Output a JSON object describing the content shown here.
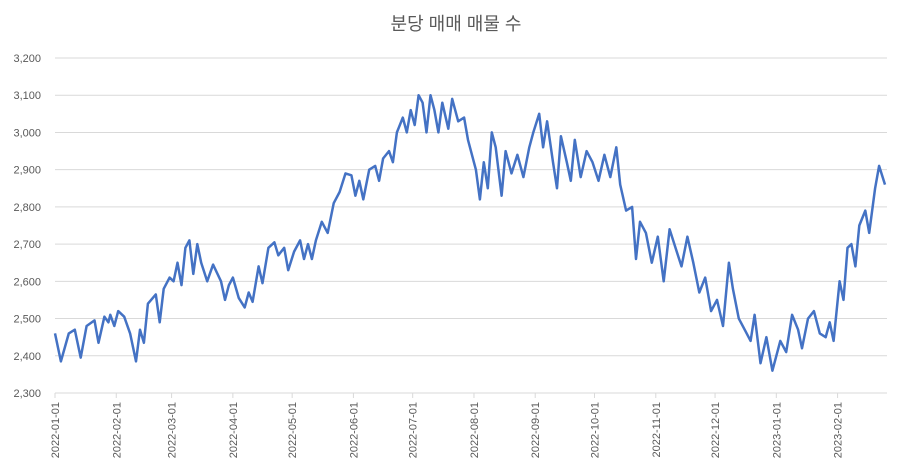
{
  "chart_data": {
    "type": "line",
    "title": "분당 매매 매물 수",
    "x": [
      "2022-01-01",
      "2022-01-04",
      "2022-01-08",
      "2022-01-11",
      "2022-01-14",
      "2022-01-17",
      "2022-01-21",
      "2022-01-23",
      "2022-01-26",
      "2022-01-28",
      "2022-01-29",
      "2022-01-31",
      "2022-02-02",
      "2022-02-05",
      "2022-02-08",
      "2022-02-11",
      "2022-02-13",
      "2022-02-15",
      "2022-02-17",
      "2022-02-21",
      "2022-02-23",
      "2022-02-25",
      "2022-02-28",
      "2022-03-02",
      "2022-03-04",
      "2022-03-06",
      "2022-03-08",
      "2022-03-10",
      "2022-03-12",
      "2022-03-14",
      "2022-03-16",
      "2022-03-19",
      "2022-03-22",
      "2022-03-26",
      "2022-03-28",
      "2022-03-30",
      "2022-04-01",
      "2022-04-04",
      "2022-04-07",
      "2022-04-09",
      "2022-04-11",
      "2022-04-14",
      "2022-04-16",
      "2022-04-19",
      "2022-04-22",
      "2022-04-24",
      "2022-04-27",
      "2022-04-29",
      "2022-05-02",
      "2022-05-05",
      "2022-05-07",
      "2022-05-09",
      "2022-05-11",
      "2022-05-13",
      "2022-05-16",
      "2022-05-19",
      "2022-05-22",
      "2022-05-25",
      "2022-05-28",
      "2022-05-31",
      "2022-06-02",
      "2022-06-04",
      "2022-06-06",
      "2022-06-09",
      "2022-06-12",
      "2022-06-14",
      "2022-06-16",
      "2022-06-19",
      "2022-06-21",
      "2022-06-23",
      "2022-06-26",
      "2022-06-28",
      "2022-06-30",
      "2022-07-02",
      "2022-07-04",
      "2022-07-06",
      "2022-07-08",
      "2022-07-10",
      "2022-07-12",
      "2022-07-14",
      "2022-07-16",
      "2022-07-19",
      "2022-07-21",
      "2022-07-24",
      "2022-07-27",
      "2022-07-29",
      "2022-08-02",
      "2022-08-04",
      "2022-08-06",
      "2022-08-08",
      "2022-08-10",
      "2022-08-12",
      "2022-08-15",
      "2022-08-17",
      "2022-08-20",
      "2022-08-23",
      "2022-08-26",
      "2022-08-29",
      "2022-08-31",
      "2022-09-03",
      "2022-09-05",
      "2022-09-07",
      "2022-09-10",
      "2022-09-12",
      "2022-09-14",
      "2022-09-17",
      "2022-09-19",
      "2022-09-21",
      "2022-09-24",
      "2022-09-27",
      "2022-09-30",
      "2022-10-03",
      "2022-10-06",
      "2022-10-09",
      "2022-10-12",
      "2022-10-14",
      "2022-10-17",
      "2022-10-20",
      "2022-10-22",
      "2022-10-24",
      "2022-10-27",
      "2022-10-30",
      "2022-11-02",
      "2022-11-05",
      "2022-11-08",
      "2022-11-11",
      "2022-11-14",
      "2022-11-17",
      "2022-11-20",
      "2022-11-23",
      "2022-11-26",
      "2022-11-29",
      "2022-12-02",
      "2022-12-05",
      "2022-12-08",
      "2022-12-10",
      "2022-12-13",
      "2022-12-16",
      "2022-12-19",
      "2022-12-21",
      "2022-12-24",
      "2022-12-27",
      "2022-12-30",
      "2023-01-03",
      "2023-01-06",
      "2023-01-09",
      "2023-01-12",
      "2023-01-14",
      "2023-01-17",
      "2023-01-20",
      "2023-01-23",
      "2023-01-26",
      "2023-01-28",
      "2023-01-30",
      "2023-02-02",
      "2023-02-04",
      "2023-02-06",
      "2023-02-08",
      "2023-02-10",
      "2023-02-12",
      "2023-02-15",
      "2023-02-17",
      "2023-02-20",
      "2023-02-22",
      "2023-02-25"
    ],
    "series": [
      {
        "color": "#4472c4",
        "values": [
          2460,
          2385,
          2460,
          2470,
          2395,
          2480,
          2495,
          2435,
          2505,
          2490,
          2510,
          2480,
          2520,
          2505,
          2460,
          2385,
          2470,
          2435,
          2540,
          2565,
          2490,
          2580,
          2610,
          2600,
          2650,
          2590,
          2690,
          2710,
          2620,
          2700,
          2650,
          2600,
          2645,
          2600,
          2550,
          2590,
          2610,
          2555,
          2530,
          2570,
          2545,
          2640,
          2595,
          2690,
          2705,
          2670,
          2690,
          2630,
          2680,
          2710,
          2660,
          2700,
          2660,
          2710,
          2760,
          2730,
          2810,
          2840,
          2890,
          2885,
          2830,
          2870,
          2820,
          2900,
          2910,
          2870,
          2930,
          2950,
          2920,
          3000,
          3040,
          3000,
          3060,
          3020,
          3100,
          3080,
          3000,
          3100,
          3060,
          3000,
          3080,
          3010,
          3090,
          3030,
          3040,
          2980,
          2900,
          2820,
          2920,
          2850,
          3000,
          2960,
          2830,
          2950,
          2890,
          2940,
          2880,
          2960,
          3000,
          3050,
          2960,
          3030,
          2920,
          2850,
          2990,
          2920,
          2870,
          2980,
          2880,
          2950,
          2920,
          2870,
          2940,
          2880,
          2960,
          2860,
          2790,
          2800,
          2660,
          2760,
          2730,
          2650,
          2720,
          2600,
          2740,
          2690,
          2640,
          2720,
          2650,
          2570,
          2610,
          2520,
          2550,
          2480,
          2650,
          2580,
          2500,
          2470,
          2440,
          2510,
          2380,
          2450,
          2360,
          2440,
          2410,
          2510,
          2470,
          2420,
          2500,
          2520,
          2460,
          2450,
          2490,
          2440,
          2600,
          2550,
          2690,
          2700,
          2640,
          2750,
          2790,
          2730,
          2850,
          2910,
          2860
        ]
      }
    ],
    "xlim": [
      "2022-01-01",
      "2023-02-26"
    ],
    "xticks": [
      "2022-01-01",
      "2022-02-01",
      "2022-03-01",
      "2022-04-01",
      "2022-05-01",
      "2022-06-01",
      "2022-07-01",
      "2022-08-01",
      "2022-09-01",
      "2022-10-01",
      "2022-11-01",
      "2022-12-01",
      "2023-01-01",
      "2023-02-01"
    ],
    "ylim": [
      2300,
      3200
    ],
    "yticks": [
      {
        "value": 2300,
        "label": "2,300"
      },
      {
        "value": 2400,
        "label": "2,400"
      },
      {
        "value": 2500,
        "label": "2,500"
      },
      {
        "value": 2600,
        "label": "2,600"
      },
      {
        "value": 2700,
        "label": "2,700"
      },
      {
        "value": 2800,
        "label": "2,800"
      },
      {
        "value": 2900,
        "label": "2,900"
      },
      {
        "value": 3000,
        "label": "3,000"
      },
      {
        "value": 3100,
        "label": "3,100"
      },
      {
        "value": 3200,
        "label": "3,200"
      }
    ],
    "grid": true
  }
}
